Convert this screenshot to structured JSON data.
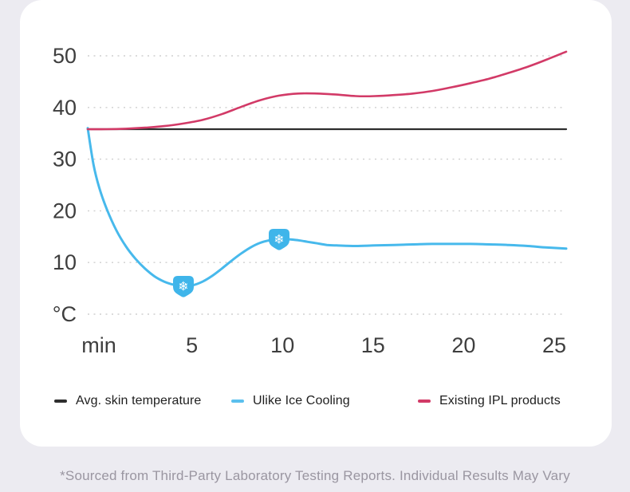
{
  "page": {
    "background_color": "#ECEBF1",
    "card_color": "#FFFFFF"
  },
  "footnote": "*Sourced from Third-Party Laboratory Testing Reports. Individual Results May Vary",
  "chart_data": {
    "type": "line",
    "title": "",
    "x_unit_label": "min",
    "y_unit_label": "°C",
    "xlim": [
      0,
      25
    ],
    "ylim": [
      0,
      54
    ],
    "x_ticks": [
      5,
      10,
      15,
      20,
      25
    ],
    "y_ticks": [
      0,
      10,
      20,
      30,
      40,
      50
    ],
    "grid": "horizontal-dotted",
    "grid_color": "#CFCFCF",
    "axis_text_color": "#3E3E3E",
    "legend_position": "bottom",
    "marker": {
      "icon": "snowflake",
      "badge_color": "#3FB5EA",
      "glyph_color": "#FFFFFF",
      "glyph": "❄"
    },
    "series": [
      {
        "name": "Avg. skin temperature",
        "color": "#2E2E2E",
        "stroke_width": 2.2,
        "smooth": false,
        "points": [
          [
            0,
            35.8
          ],
          [
            25,
            35.8
          ]
        ]
      },
      {
        "name": "Ulike Ice Cooling",
        "color": "#47B9EC",
        "stroke_width": 3,
        "smooth": true,
        "points": [
          [
            0,
            36
          ],
          [
            0.3,
            29
          ],
          [
            0.6,
            24.5
          ],
          [
            1,
            20.3
          ],
          [
            1.5,
            16.2
          ],
          [
            2,
            13.1
          ],
          [
            2.5,
            10.7
          ],
          [
            3,
            8.8
          ],
          [
            3.5,
            7.3
          ],
          [
            4,
            6.3
          ],
          [
            4.5,
            5.7
          ],
          [
            5,
            5.4
          ],
          [
            5.5,
            5.6
          ],
          [
            6,
            6.3
          ],
          [
            6.5,
            7.4
          ],
          [
            7,
            8.8
          ],
          [
            7.5,
            10.3
          ],
          [
            8,
            11.7
          ],
          [
            8.5,
            12.9
          ],
          [
            9,
            13.8
          ],
          [
            9.5,
            14.3
          ],
          [
            10,
            14.5
          ],
          [
            10.5,
            14.5
          ],
          [
            11,
            14.3
          ],
          [
            11.5,
            14.0
          ],
          [
            12,
            13.7
          ],
          [
            12.5,
            13.4
          ],
          [
            13,
            13.3
          ],
          [
            14,
            13.2
          ],
          [
            15,
            13.3
          ],
          [
            16,
            13.4
          ],
          [
            17,
            13.5
          ],
          [
            18,
            13.6
          ],
          [
            19,
            13.6
          ],
          [
            20,
            13.6
          ],
          [
            21,
            13.5
          ],
          [
            22,
            13.4
          ],
          [
            23,
            13.2
          ],
          [
            24,
            12.9
          ],
          [
            25,
            12.7
          ]
        ],
        "marker_x": [
          5,
          10
        ]
      },
      {
        "name": "Existing IPL products",
        "color": "#D23A67",
        "stroke_width": 2.6,
        "smooth": true,
        "points": [
          [
            0,
            35.8
          ],
          [
            1,
            35.8
          ],
          [
            2,
            35.9
          ],
          [
            3,
            36.1
          ],
          [
            4,
            36.4
          ],
          [
            5,
            36.9
          ],
          [
            6,
            37.6
          ],
          [
            7,
            38.7
          ],
          [
            8,
            40.1
          ],
          [
            9,
            41.4
          ],
          [
            10,
            42.3
          ],
          [
            11,
            42.7
          ],
          [
            12,
            42.7
          ],
          [
            13,
            42.5
          ],
          [
            14,
            42.2
          ],
          [
            15,
            42.2
          ],
          [
            16,
            42.4
          ],
          [
            17,
            42.7
          ],
          [
            18,
            43.2
          ],
          [
            19,
            43.9
          ],
          [
            20,
            44.7
          ],
          [
            21,
            45.6
          ],
          [
            22,
            46.7
          ],
          [
            23,
            47.9
          ],
          [
            24,
            49.3
          ],
          [
            25,
            50.8
          ]
        ]
      }
    ],
    "legend": [
      {
        "label": "Avg. skin temperature",
        "color": "#2E2E2E"
      },
      {
        "label": "Ulike Ice Cooling",
        "color": "#5BC0EE"
      },
      {
        "label": "Existing IPL products",
        "color": "#D23A67"
      }
    ]
  }
}
